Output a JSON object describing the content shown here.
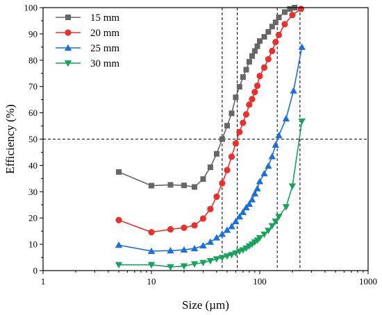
{
  "chart_data": {
    "type": "line",
    "title": "",
    "xlabel": "Size (µm)",
    "ylabel": "Efficiency (%)",
    "xscale": "log",
    "xlim": [
      1,
      1000
    ],
    "ylim": [
      0,
      100
    ],
    "xticks": [
      1,
      10,
      100,
      1000
    ],
    "xtick_labels": [
      "1",
      "10",
      "100",
      "1000"
    ],
    "yticks": [
      0,
      10,
      20,
      30,
      40,
      50,
      60,
      70,
      80,
      90,
      100
    ],
    "ytick_labels": [
      "0",
      "10",
      "20",
      "30",
      "40",
      "50",
      "60",
      "70",
      "80",
      "90",
      "100"
    ],
    "grid": false,
    "legend_position": "top-left",
    "reference_lines": {
      "horizontal_y": 50,
      "vertical_x": [
        45,
        62,
        145,
        235
      ]
    },
    "series": [
      {
        "name": "15 mm",
        "marker": "square",
        "color": "#666666",
        "x": [
          5,
          10,
          15,
          20,
          25,
          30,
          35,
          40,
          45,
          50,
          55,
          60,
          65,
          70,
          75,
          80,
          85,
          90,
          95,
          100,
          110,
          120,
          130,
          140,
          150,
          170,
          190,
          210
        ],
        "y": [
          37.5,
          32.3,
          32.6,
          32.4,
          31.8,
          34.8,
          39.3,
          44.4,
          50.0,
          55.1,
          59.8,
          65.9,
          69.9,
          73.6,
          76.4,
          79.4,
          81.6,
          83.5,
          85.3,
          87.3,
          88.9,
          90.8,
          92.8,
          94.4,
          96.3,
          98.3,
          99.5,
          100.0
        ]
      },
      {
        "name": "20 mm",
        "marker": "circle",
        "color": "#e8302c",
        "x": [
          5,
          10,
          15,
          20,
          25,
          30,
          35,
          40,
          45,
          50,
          55,
          60,
          65,
          70,
          75,
          80,
          85,
          90,
          95,
          100,
          110,
          120,
          130,
          140,
          150,
          170,
          200,
          240
        ],
        "y": [
          19.2,
          14.6,
          15.7,
          16.3,
          17.2,
          19.8,
          23.4,
          28.1,
          33.2,
          38.2,
          43.3,
          48.4,
          52.7,
          56.2,
          59.4,
          63.1,
          65.2,
          67.9,
          70.3,
          74.0,
          77.2,
          80.4,
          83.5,
          86.9,
          89.6,
          93.7,
          97.2,
          99.5
        ]
      },
      {
        "name": "25 mm",
        "marker": "triangle-up",
        "color": "#1c6fdb",
        "x": [
          5,
          10,
          15,
          20,
          25,
          30,
          35,
          40,
          45,
          50,
          55,
          60,
          65,
          70,
          75,
          80,
          85,
          90,
          95,
          100,
          110,
          120,
          130,
          140,
          150,
          175,
          205,
          245
        ],
        "y": [
          9.7,
          7.4,
          7.6,
          7.9,
          8.4,
          9.5,
          10.9,
          12.5,
          13.9,
          15.4,
          16.8,
          18.7,
          20.5,
          22.2,
          24.0,
          25.3,
          27.0,
          29.3,
          31.2,
          33.9,
          36.9,
          39.8,
          43.4,
          47.8,
          51.4,
          57.8,
          68.4,
          85.0
        ]
      },
      {
        "name": "30 mm",
        "marker": "triangle-down",
        "color": "#17a35c",
        "x": [
          5,
          10,
          15,
          20,
          25,
          30,
          35,
          40,
          45,
          50,
          55,
          60,
          65,
          70,
          75,
          80,
          85,
          90,
          95,
          100,
          110,
          120,
          130,
          140,
          150,
          175,
          200,
          245
        ],
        "y": [
          2.2,
          2.2,
          1.4,
          1.7,
          2.5,
          3.0,
          3.7,
          4.4,
          4.9,
          5.5,
          6.0,
          6.6,
          7.3,
          7.8,
          8.5,
          9.3,
          10.0,
          10.8,
          11.5,
          12.4,
          13.8,
          15.2,
          17.0,
          18.7,
          20.5,
          24.2,
          32.1,
          56.8
        ]
      }
    ]
  }
}
